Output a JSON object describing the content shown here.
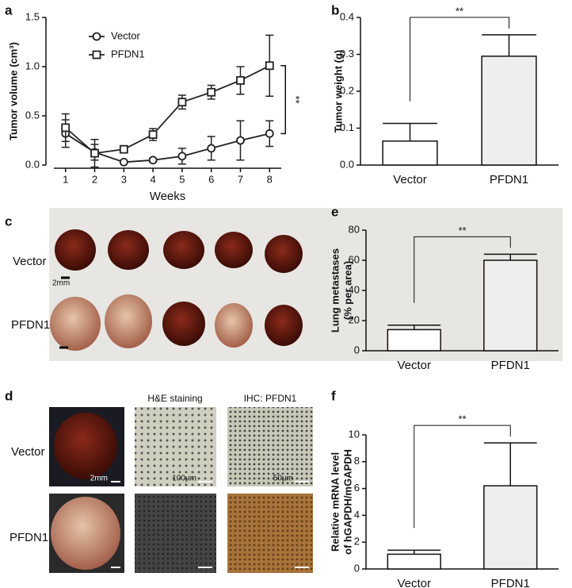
{
  "chart_data": [
    {
      "type": "line",
      "panel": "a",
      "ylabel": [
        "Tumor volume (cm³)"
      ],
      "xlabel": "Weeks",
      "x": [
        1,
        2,
        3,
        4,
        5,
        6,
        7,
        8
      ],
      "xlim": [
        0.6,
        8.4
      ],
      "xticks": [
        1,
        2,
        3,
        4,
        5,
        6,
        7,
        8
      ],
      "ylim": [
        0,
        1.5
      ],
      "yticks": [
        {
          "value": 0,
          "label": "0.0"
        },
        0.5,
        {
          "value": 1,
          "label": "1.0"
        },
        1.5
      ],
      "series": [
        {
          "name": "Vector",
          "marker": "circle",
          "color": "#222222",
          "values": [
            0.32,
            0.13,
            0.03,
            0.05,
            0.09,
            0.17,
            0.25,
            0.32
          ],
          "errors": [
            0.14,
            0.08,
            0.01,
            0.02,
            0.08,
            0.12,
            0.2,
            0.13
          ]
        },
        {
          "name": "PFDN1",
          "marker": "square",
          "color": "#222222",
          "values": [
            0.38,
            0.12,
            0.16,
            0.31,
            0.64,
            0.74,
            0.86,
            1.01
          ],
          "errors": [
            0.14,
            0.14,
            0.03,
            0.06,
            0.07,
            0.07,
            0.14,
            0.31
          ]
        }
      ],
      "annotation": "**"
    },
    {
      "type": "bar",
      "panel": "b",
      "ylabel": [
        "Tumor weight (g)"
      ],
      "categories": [
        "Vector",
        "PFDN1"
      ],
      "values": [
        0.065,
        0.295
      ],
      "errors": [
        0.048,
        0.058
      ],
      "colors": [
        "#ffffff",
        "#eeeeee"
      ],
      "ylim": [
        0,
        0.4
      ],
      "yticks": [
        {
          "value": 0,
          "label": "0.0"
        },
        0.1,
        0.2,
        0.3,
        0.4
      ],
      "annotation": "**"
    },
    {
      "type": "bar",
      "panel": "e",
      "ylabel": [
        "Lung metastases",
        "(% per area)"
      ],
      "categories": [
        "Vector",
        "PFDN1"
      ],
      "values": [
        14,
        60
      ],
      "errors": [
        3,
        4
      ],
      "colors": [
        "#ffffff",
        "#eeeeee"
      ],
      "ylim": [
        0,
        80
      ],
      "yticks": [
        0,
        20,
        40,
        60,
        80
      ],
      "annotation": "**"
    },
    {
      "type": "bar",
      "panel": "f",
      "ylabel": [
        "Relative mRNA level",
        "of hGAPDH/mGAPDH"
      ],
      "categories": [
        "Vector",
        "PFDN1"
      ],
      "values": [
        1.1,
        6.2
      ],
      "errors": [
        0.3,
        3.2
      ],
      "colors": [
        "#ffffff",
        "#eeeeee"
      ],
      "ylim": [
        0,
        10
      ],
      "yticks": [
        0,
        2,
        4,
        6,
        8,
        10
      ],
      "annotation": "**"
    }
  ],
  "photos": {
    "c": {
      "panel": "c",
      "rows": [
        "Vector",
        "PFDN1"
      ],
      "scale": "2mm"
    },
    "d": {
      "panel": "d",
      "columns": [
        "H&E staining",
        "IHC: PFDN1"
      ],
      "rows": [
        "Vector",
        "PFDN1"
      ],
      "scales": [
        "2mm",
        "100μm",
        "50μm"
      ]
    }
  }
}
